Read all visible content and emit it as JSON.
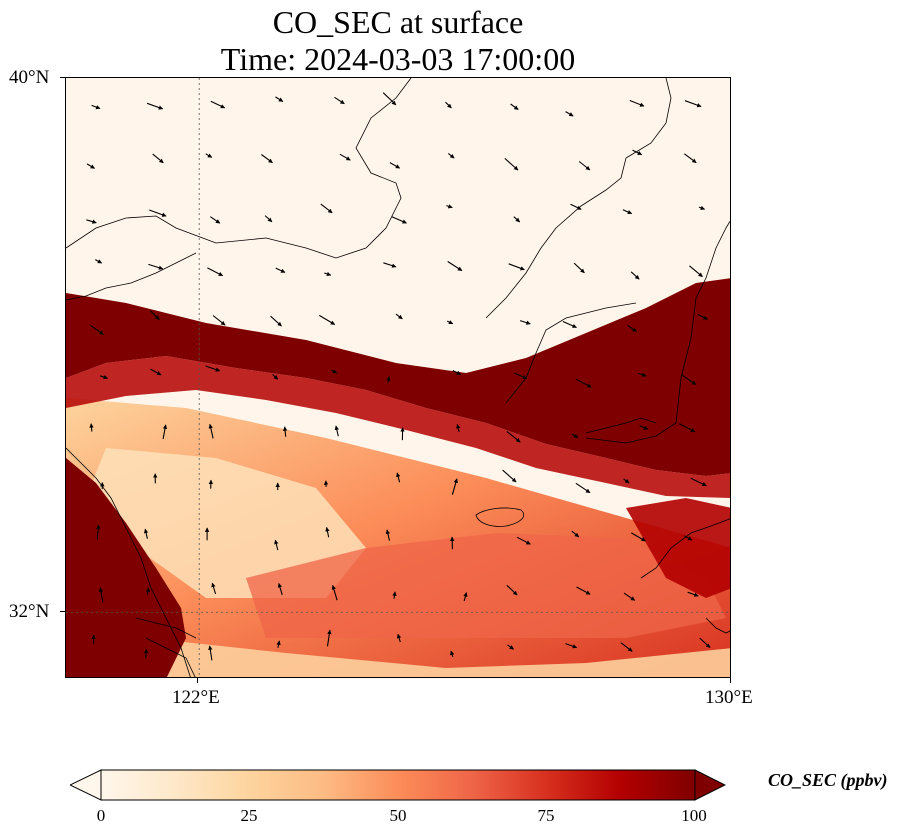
{
  "title": {
    "line1": "CO_SEC at surface",
    "line2": "Time: 2024-03-03 17:00:00"
  },
  "map": {
    "lon_range": [
      120,
      130
    ],
    "lat_range": [
      31,
      40
    ],
    "lat_ticks": [
      {
        "value": 40,
        "label": "40°N"
      },
      {
        "value": 32,
        "label": "32°N"
      }
    ],
    "lon_ticks": [
      {
        "value": 122,
        "label": "122°E"
      },
      {
        "value": 130,
        "label": "130°E"
      }
    ],
    "gridlines": {
      "lon": [
        122
      ],
      "lat": [
        32
      ]
    },
    "field_variable": "CO_SEC",
    "features": [
      "coastlines",
      "wind-vectors",
      "gridlines"
    ]
  },
  "colorbar": {
    "label": "CO_SEC (ppbv)",
    "min": 0,
    "max": 100,
    "ticks": [
      {
        "value": 0,
        "label": "0"
      },
      {
        "value": 25,
        "label": "25"
      },
      {
        "value": 50,
        "label": "50"
      },
      {
        "value": 75,
        "label": "75"
      },
      {
        "value": 100,
        "label": "100"
      }
    ],
    "colormap": "OrRd",
    "colors": [
      "#fff7ec",
      "#fee8c8",
      "#fdd49e",
      "#fdbb84",
      "#fc8d59",
      "#ef6548",
      "#d7301f",
      "#b30000",
      "#7f0000"
    ],
    "extend": "both"
  }
}
